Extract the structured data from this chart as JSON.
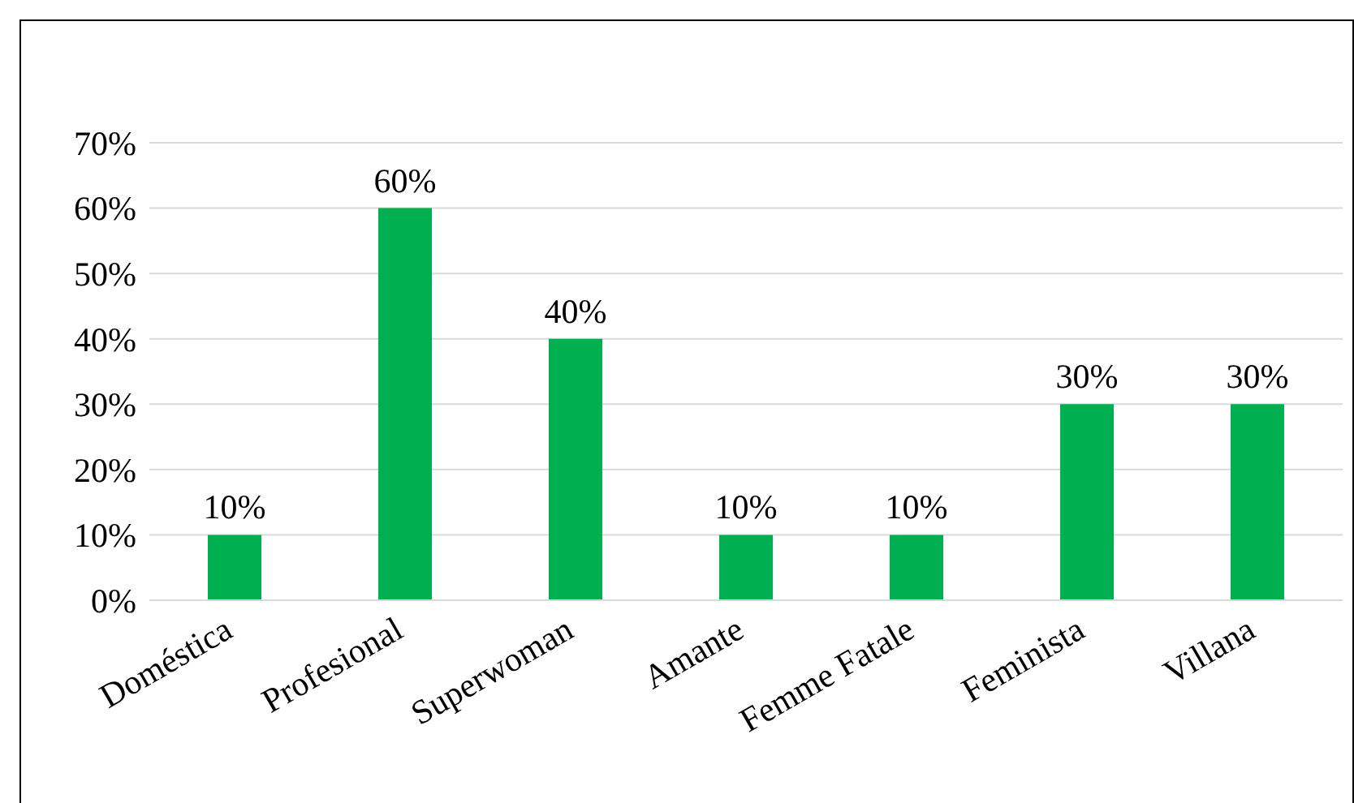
{
  "chart_data": {
    "type": "bar",
    "categories": [
      "Doméstica",
      "Profesional",
      "Superwoman",
      "Amante",
      "Femme Fatale",
      "Feminista",
      "Villana"
    ],
    "values": [
      10,
      60,
      40,
      10,
      10,
      30,
      30
    ],
    "value_labels": [
      "10%",
      "60%",
      "40%",
      "10%",
      "10%",
      "30%",
      "30%"
    ],
    "color": "#00b050",
    "ylim": [
      0,
      70
    ],
    "yticks": [
      {
        "value": 0,
        "label": "0%"
      },
      {
        "value": 10,
        "label": "10%"
      },
      {
        "value": 20,
        "label": "20%"
      },
      {
        "value": 30,
        "label": "30%"
      },
      {
        "value": 40,
        "label": "40%"
      },
      {
        "value": 50,
        "label": "50%"
      },
      {
        "value": 60,
        "label": "60%"
      },
      {
        "value": 70,
        "label": "70%"
      }
    ],
    "grid": "y",
    "legend": false
  }
}
